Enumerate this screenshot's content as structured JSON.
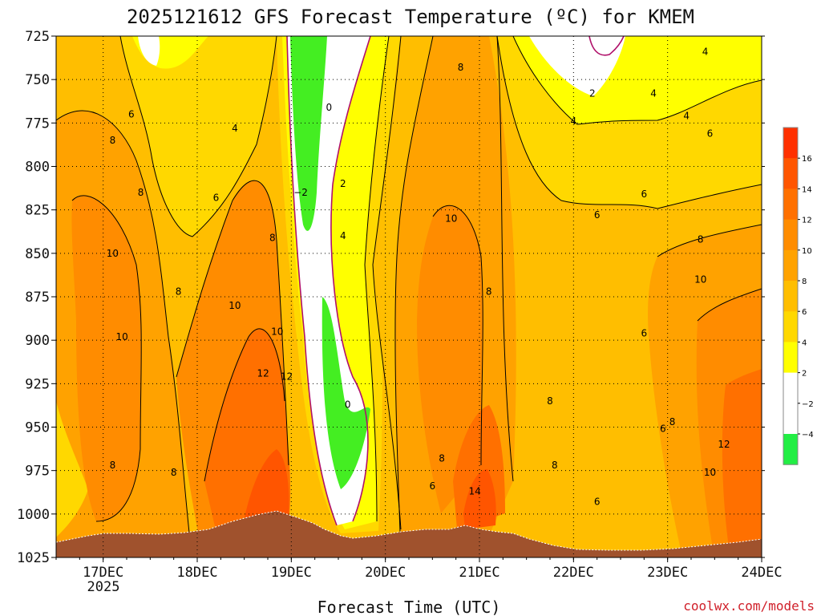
{
  "chart_data": {
    "type": "heatmap",
    "title": "2025121612 GFS Forecast Temperature (ºC) for KMEM",
    "xlabel": "Forecast Time (UTC)",
    "ylabel": "",
    "x_ticks": [
      "17DEC",
      "18DEC",
      "19DEC",
      "20DEC",
      "21DEC",
      "22DEC",
      "23DEC",
      "24DEC"
    ],
    "x_year_label": "2025",
    "y_ticks": [
      "725",
      "750",
      "775",
      "800",
      "825",
      "850",
      "875",
      "900",
      "925",
      "950",
      "975",
      "1000",
      "1025"
    ],
    "ylim": [
      1025,
      725
    ],
    "grid": true,
    "colorbar": {
      "labels": [
        "16",
        "14",
        "12",
        "10",
        "8",
        "6",
        "4",
        "2",
        "−2",
        "−4"
      ],
      "colors": {
        "ge16": "#ff3000",
        "14": "#ff5500",
        "12": "#ff7000",
        "10": "#ff8c00",
        "8": "#ffa200",
        "6": "#ffbe00",
        "4": "#ffd800",
        "2": "#ffff00",
        "0": "#ffffff",
        "-2": "#ffffff",
        "-4": "#66ee22",
        "lt-4": "#22ee44"
      }
    },
    "terrain_color": "#a0522d",
    "freezing_line_color": "#b0106a",
    "contour_labels": [
      {
        "text": "6",
        "x": 17.3,
        "p": 770
      },
      {
        "text": "8",
        "x": 17.1,
        "p": 785
      },
      {
        "text": "4",
        "x": 18.4,
        "p": 778
      },
      {
        "text": "8",
        "x": 17.4,
        "p": 815
      },
      {
        "text": "6",
        "x": 18.2,
        "p": 818
      },
      {
        "text": "10",
        "x": 17.1,
        "p": 850
      },
      {
        "text": "8",
        "x": 17.8,
        "p": 872
      },
      {
        "text": "10",
        "x": 18.4,
        "p": 880
      },
      {
        "text": "8",
        "x": 18.8,
        "p": 841
      },
      {
        "text": "10",
        "x": 17.2,
        "p": 898
      },
      {
        "text": "10",
        "x": 18.85,
        "p": 895
      },
      {
        "text": "12",
        "x": 18.7,
        "p": 919
      },
      {
        "text": "12",
        "x": 18.95,
        "p": 921
      },
      {
        "text": "8",
        "x": 17.1,
        "p": 972
      },
      {
        "text": "8",
        "x": 17.75,
        "p": 976
      },
      {
        "text": "0",
        "x": 19.4,
        "p": 766
      },
      {
        "text": "−2",
        "x": 19.1,
        "p": 815
      },
      {
        "text": "2",
        "x": 19.55,
        "p": 810
      },
      {
        "text": "4",
        "x": 19.55,
        "p": 840
      },
      {
        "text": "0",
        "x": 19.6,
        "p": 937
      },
      {
        "text": "8",
        "x": 20.8,
        "p": 743
      },
      {
        "text": "10",
        "x": 20.7,
        "p": 830
      },
      {
        "text": "8",
        "x": 21.1,
        "p": 872
      },
      {
        "text": "8",
        "x": 20.6,
        "p": 968
      },
      {
        "text": "6",
        "x": 20.5,
        "p": 984
      },
      {
        "text": "14",
        "x": 20.95,
        "p": 987
      },
      {
        "text": "8",
        "x": 21.75,
        "p": 935
      },
      {
        "text": "8",
        "x": 21.8,
        "p": 972
      },
      {
        "text": "6",
        "x": 22.25,
        "p": 993
      },
      {
        "text": "2",
        "x": 22.2,
        "p": 758
      },
      {
        "text": "4",
        "x": 22.85,
        "p": 758
      },
      {
        "text": "4",
        "x": 22.0,
        "p": 774
      },
      {
        "text": "4",
        "x": 23.2,
        "p": 771
      },
      {
        "text": "4",
        "x": 23.4,
        "p": 734
      },
      {
        "text": "6",
        "x": 23.45,
        "p": 781
      },
      {
        "text": "6",
        "x": 22.75,
        "p": 816
      },
      {
        "text": "6",
        "x": 22.25,
        "p": 828
      },
      {
        "text": "8",
        "x": 23.35,
        "p": 842
      },
      {
        "text": "10",
        "x": 23.35,
        "p": 865
      },
      {
        "text": "6",
        "x": 22.75,
        "p": 896
      },
      {
        "text": "6",
        "x": 22.95,
        "p": 951
      },
      {
        "text": "8",
        "x": 23.05,
        "p": 947
      },
      {
        "text": "10",
        "x": 23.45,
        "p": 976
      },
      {
        "text": "12",
        "x": 23.6,
        "p": 960
      }
    ]
  },
  "credit": "coolwx.com/models"
}
